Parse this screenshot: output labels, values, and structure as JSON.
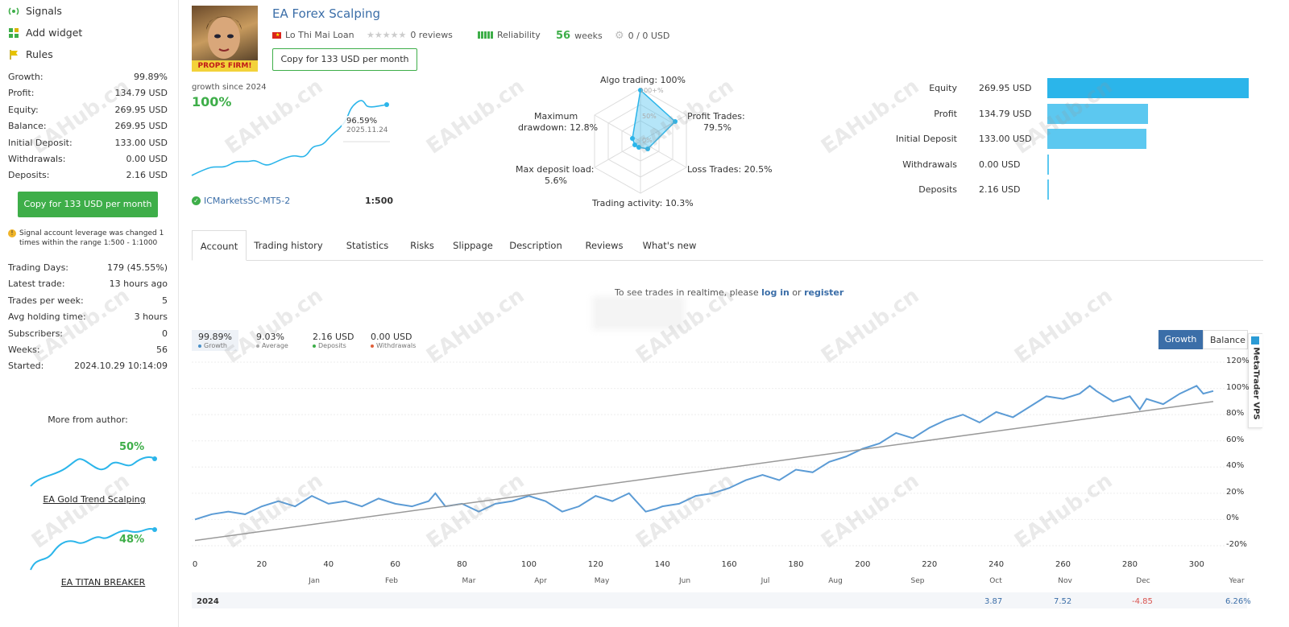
{
  "sidebar": {
    "nav": [
      {
        "label": "Signals",
        "icon": "signal-icon"
      },
      {
        "label": "Add widget",
        "icon": "widget-icon"
      },
      {
        "label": "Rules",
        "icon": "flag-icon"
      }
    ],
    "stats1": [
      {
        "k": "Growth:",
        "v": "99.89%"
      },
      {
        "k": "Profit:",
        "v": "134.79 USD"
      },
      {
        "k": "Equity:",
        "v": "269.95 USD"
      },
      {
        "k": "Balance:",
        "v": "269.95 USD"
      },
      {
        "k": "Initial Deposit:",
        "v": "133.00 USD"
      },
      {
        "k": "Withdrawals:",
        "v": "0.00 USD"
      },
      {
        "k": "Deposits:",
        "v": "2.16 USD"
      }
    ],
    "copy_button": "Copy for 133 USD per month",
    "warning": "Signal account leverage was changed 1 times within the range 1:500 - 1:1000",
    "stats2": [
      {
        "k": "Trading Days:",
        "v": "179 (45.55%)"
      },
      {
        "k": "Latest trade:",
        "v": "13 hours ago"
      },
      {
        "k": "Trades per week:",
        "v": "5"
      },
      {
        "k": "Avg holding time:",
        "v": "3 hours"
      },
      {
        "k": "Subscribers:",
        "v": "0"
      },
      {
        "k": "Weeks:",
        "v": "56"
      },
      {
        "k": "Started:",
        "v": "2024.10.29 10:14:09"
      }
    ],
    "more_from_author": "More from author:",
    "author_signals": [
      {
        "name": "EA Gold Trend Scalping",
        "pct": "50%"
      },
      {
        "name": "EA TITAN BREAKER",
        "pct": "48%"
      }
    ]
  },
  "header": {
    "title": "EA Forex Scalping",
    "author": "Lo Thi Mai Loan",
    "reviews": "0 reviews",
    "reliability": "Reliability",
    "weeks_num": "56",
    "weeks_lbl": "weeks",
    "subscribers": "0 / 0 USD",
    "copy_button": "Copy for 133 USD per month",
    "avatar_text": "PROPS FIRM!"
  },
  "mini": {
    "label": "growth since 2024",
    "value": "100%",
    "tooltip_value": "96.59%",
    "tooltip_date": "2025.11.24",
    "server": "ICMarketsSC-MT5-2",
    "leverage": "1:500"
  },
  "radar": {
    "algo": "Algo trading: 100%",
    "profit": "Profit Trades:",
    "profit_v": "79.5%",
    "loss": "Loss Trades: 20.5%",
    "activity": "Trading activity: 10.3%",
    "load": "Max deposit load:",
    "load_v": "5.6%",
    "dd": "Maximum",
    "dd_v": "drawdown: 12.8%",
    "g100": "100+%",
    "g50": "50%",
    "g0": "0%"
  },
  "balance_bars": {
    "max": 269.95,
    "color": "#2bb5ea",
    "items": [
      {
        "label": "Equity",
        "value": "269.95 USD",
        "amount": 269.95
      },
      {
        "label": "Profit",
        "value": "134.79 USD",
        "amount": 134.79
      },
      {
        "label": "Initial Deposit",
        "value": "133.00 USD",
        "amount": 133.0
      },
      {
        "label": "Withdrawals",
        "value": "0.00 USD",
        "amount": 0
      },
      {
        "label": "Deposits",
        "value": "2.16 USD",
        "amount": 2.16
      }
    ]
  },
  "tabs": [
    "Account",
    "Trading history",
    "Statistics",
    "Risks",
    "Slippage",
    "Description",
    "Reviews",
    "What's new"
  ],
  "realtime": {
    "prefix": "To see trades in realtime, please",
    "login": "log in",
    "or": "or",
    "register": "register"
  },
  "summary": [
    {
      "value": "99.89%",
      "label": "Growth",
      "color": "#4a90c8"
    },
    {
      "value": "9.03%",
      "label": "Average",
      "color": "#aaaaaa"
    },
    {
      "value": "2.16 USD",
      "label": "Deposits",
      "color": "#3eae49"
    },
    {
      "value": "0.00 USD",
      "label": "Withdrawals",
      "color": "#e0603a"
    }
  ],
  "toggle": {
    "growth": "Growth",
    "balance": "Balance"
  },
  "vps_label": "MetaTrader VPS",
  "watermark": "EAHub.cn",
  "chart_data": {
    "type": "line",
    "x_ticks": [
      "0",
      "20",
      "40",
      "60",
      "80",
      "100",
      "120",
      "140",
      "160",
      "180",
      "200",
      "220",
      "240",
      "260",
      "280",
      "300"
    ],
    "y_ticks": [
      "120%",
      "100%",
      "80%",
      "60%",
      "40%",
      "20%",
      "0%",
      "-20%"
    ],
    "ylim": [
      -20,
      120
    ],
    "xlim": [
      0,
      305
    ],
    "months": [
      "Jan",
      "Feb",
      "Mar",
      "Apr",
      "May",
      "Jun",
      "Jul",
      "Aug",
      "Sep",
      "Oct",
      "Nov",
      "Dec",
      "Year"
    ],
    "year": "2024",
    "year_row": [
      {
        "month": "Oct",
        "value": "3.87"
      },
      {
        "month": "Nov",
        "value": "7.52"
      },
      {
        "month": "Dec",
        "value": "-4.85"
      },
      {
        "month": "Year",
        "value": "6.26%"
      }
    ],
    "series": [
      {
        "color": "#5b9bd5",
        "x": [
          0,
          5,
          10,
          15,
          20,
          25,
          30,
          35,
          40,
          45,
          50,
          55,
          60,
          65,
          70,
          72,
          75,
          80,
          85,
          90,
          95,
          100,
          105,
          110,
          115,
          120,
          125,
          130,
          135,
          138,
          140,
          145,
          150,
          155,
          160,
          165,
          170,
          175,
          180,
          185,
          190,
          195,
          200,
          205,
          210,
          215,
          220,
          225,
          230,
          235,
          240,
          245,
          250,
          255,
          260,
          265,
          268,
          270,
          275,
          280,
          283,
          285,
          290,
          295,
          300,
          302,
          305
        ],
        "y": [
          0,
          4,
          6,
          4,
          10,
          14,
          10,
          18,
          12,
          14,
          10,
          16,
          12,
          10,
          14,
          20,
          10,
          12,
          6,
          12,
          14,
          18,
          14,
          6,
          10,
          18,
          14,
          20,
          6,
          8,
          10,
          12,
          18,
          20,
          24,
          30,
          34,
          30,
          38,
          36,
          44,
          48,
          54,
          58,
          66,
          62,
          70,
          76,
          80,
          74,
          82,
          78,
          86,
          94,
          92,
          96,
          102,
          98,
          90,
          94,
          84,
          92,
          88,
          96,
          102,
          96,
          98
        ]
      },
      {
        "color": "#999999",
        "x": [
          0,
          305
        ],
        "y": [
          -16,
          90
        ]
      }
    ]
  }
}
